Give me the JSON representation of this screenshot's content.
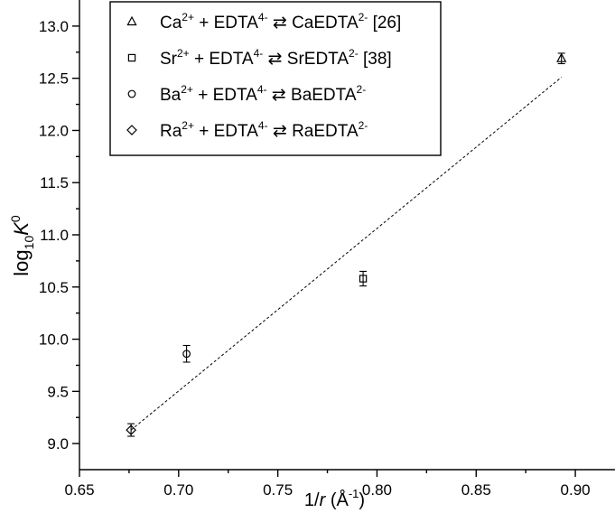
{
  "chart_data": {
    "type": "scatter",
    "x_axis": {
      "range": [
        0.65,
        0.92
      ],
      "ticks": [
        0.65,
        0.7,
        0.75,
        0.8,
        0.85,
        0.9
      ],
      "tick_labels": [
        "0.65",
        "0.70",
        "0.75",
        "0.80",
        "0.85",
        "0.90"
      ],
      "title_prefix": "1/",
      "title_var": "r",
      "title_unit": " (Å",
      "title_sup": "-1",
      "title_suffix": ")"
    },
    "y_axis": {
      "range": [
        8.75,
        13.25
      ],
      "ticks": [
        9.0,
        9.5,
        10.0,
        10.5,
        11.0,
        11.5,
        12.0,
        12.5,
        13.0
      ],
      "tick_labels": [
        "9.0",
        "9.5",
        "10.0",
        "10.5",
        "11.0",
        "11.5",
        "12.0",
        "12.5",
        "13.0"
      ],
      "title_base": "log",
      "title_sub": "10",
      "title_var": "K",
      "title_sup": "0"
    },
    "grid": false,
    "legend_position": "top",
    "series": [
      {
        "marker": "triangle",
        "x": 0.893,
        "y": 12.69,
        "err": 0.05,
        "legend": {
          "ion": "Ca",
          "ion_sup": "2+",
          "mid": " + EDTA",
          "mid_sup": "4-",
          "arrow": " ⇄ ",
          "product": "CaEDTA",
          "product_sup": "2-",
          "ref": " [26]"
        }
      },
      {
        "marker": "square",
        "x": 0.793,
        "y": 10.58,
        "err": 0.07,
        "legend": {
          "ion": "Sr",
          "ion_sup": "2+",
          "mid": " + EDTA",
          "mid_sup": "4-",
          "arrow": " ⇄ ",
          "product": "SrEDTA",
          "product_sup": "2-",
          "ref": " [38]"
        }
      },
      {
        "marker": "circle",
        "x": 0.704,
        "y": 9.86,
        "err": 0.08,
        "legend": {
          "ion": "Ba",
          "ion_sup": "2+",
          "mid": " + EDTA",
          "mid_sup": "4-",
          "arrow": " ⇄ ",
          "product": "BaEDTA",
          "product_sup": "2-",
          "ref": ""
        }
      },
      {
        "marker": "diamond",
        "x": 0.676,
        "y": 9.13,
        "err": 0.06,
        "legend": {
          "ion": "Ra",
          "ion_sup": "2+",
          "mid": " + EDTA",
          "mid_sup": "4-",
          "arrow": " ⇄ ",
          "product": "RaEDTA",
          "product_sup": "2-",
          "ref": ""
        }
      }
    ],
    "fit_line": {
      "x": [
        0.676,
        0.893
      ],
      "y": [
        9.13,
        12.51
      ],
      "style": "dashed"
    }
  }
}
